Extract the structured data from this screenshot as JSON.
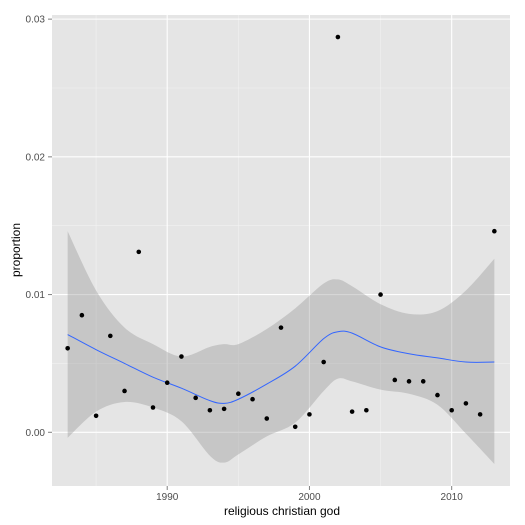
{
  "chart_data": {
    "type": "scatter",
    "xlabel": "religious christian god",
    "ylabel": "proportion",
    "xlim": [
      1981.9,
      2014.1
    ],
    "ylim": [
      -0.0039,
      0.0303
    ],
    "x_ticks": [
      1990,
      2000,
      2010
    ],
    "x_tick_labels": [
      "1990",
      "2000",
      "2010"
    ],
    "y_ticks": [
      0.0,
      0.01,
      0.02,
      0.03
    ],
    "y_tick_labels": [
      "0.00",
      "0.01",
      "0.02",
      "0.03"
    ],
    "grid": true,
    "legend": "none",
    "points": [
      {
        "x": 1983,
        "y": 0.0061
      },
      {
        "x": 1984,
        "y": 0.0085
      },
      {
        "x": 1985,
        "y": 0.0012
      },
      {
        "x": 1986,
        "y": 0.007
      },
      {
        "x": 1987,
        "y": 0.003
      },
      {
        "x": 1988,
        "y": 0.0131
      },
      {
        "x": 1989,
        "y": 0.0018
      },
      {
        "x": 1990,
        "y": 0.0036
      },
      {
        "x": 1991,
        "y": 0.0055
      },
      {
        "x": 1992,
        "y": 0.0025
      },
      {
        "x": 1993,
        "y": 0.0016
      },
      {
        "x": 1994,
        "y": 0.0017
      },
      {
        "x": 1995,
        "y": 0.0028
      },
      {
        "x": 1996,
        "y": 0.0024
      },
      {
        "x": 1997,
        "y": 0.001
      },
      {
        "x": 1998,
        "y": 0.0076
      },
      {
        "x": 1999,
        "y": 0.0004
      },
      {
        "x": 2000,
        "y": 0.0013
      },
      {
        "x": 2001,
        "y": 0.0051
      },
      {
        "x": 2002,
        "y": 0.0287
      },
      {
        "x": 2003,
        "y": 0.0015
      },
      {
        "x": 2004,
        "y": 0.0016
      },
      {
        "x": 2005,
        "y": 0.01
      },
      {
        "x": 2006,
        "y": 0.0038
      },
      {
        "x": 2007,
        "y": 0.0037
      },
      {
        "x": 2008,
        "y": 0.0037
      },
      {
        "x": 2009,
        "y": 0.0027
      },
      {
        "x": 2010,
        "y": 0.0016
      },
      {
        "x": 2011,
        "y": 0.0021
      },
      {
        "x": 2012,
        "y": 0.0013
      },
      {
        "x": 2013,
        "y": 0.0146
      }
    ],
    "smooth_line": [
      {
        "x": 1983,
        "y": 0.0071
      },
      {
        "x": 1985,
        "y": 0.006
      },
      {
        "x": 1987,
        "y": 0.005
      },
      {
        "x": 1989,
        "y": 0.004
      },
      {
        "x": 1991,
        "y": 0.0032
      },
      {
        "x": 1993,
        "y": 0.0023
      },
      {
        "x": 1994,
        "y": 0.0021
      },
      {
        "x": 1995,
        "y": 0.0024
      },
      {
        "x": 1997,
        "y": 0.0035
      },
      {
        "x": 1999,
        "y": 0.0048
      },
      {
        "x": 2001,
        "y": 0.0068
      },
      {
        "x": 2002,
        "y": 0.0073
      },
      {
        "x": 2003,
        "y": 0.0072
      },
      {
        "x": 2005,
        "y": 0.0062
      },
      {
        "x": 2007,
        "y": 0.0057
      },
      {
        "x": 2009,
        "y": 0.0054
      },
      {
        "x": 2011,
        "y": 0.0051
      },
      {
        "x": 2013,
        "y": 0.0051
      }
    ],
    "confidence_band": [
      {
        "x": 1983,
        "lower": -0.0004,
        "upper": 0.0146
      },
      {
        "x": 1985,
        "lower": 0.0015,
        "upper": 0.0103
      },
      {
        "x": 1987,
        "lower": 0.0022,
        "upper": 0.0076
      },
      {
        "x": 1989,
        "lower": 0.0018,
        "upper": 0.0064
      },
      {
        "x": 1991,
        "lower": 0.0008,
        "upper": 0.0055
      },
      {
        "x": 1993,
        "lower": -0.0017,
        "upper": 0.0062
      },
      {
        "x": 1994,
        "lower": -0.0022,
        "upper": 0.0064
      },
      {
        "x": 1995,
        "lower": -0.0016,
        "upper": 0.0064
      },
      {
        "x": 1997,
        "lower": -0.0003,
        "upper": 0.0075
      },
      {
        "x": 1999,
        "lower": 0.0007,
        "upper": 0.009
      },
      {
        "x": 2001,
        "lower": 0.003,
        "upper": 0.0108
      },
      {
        "x": 2002,
        "lower": 0.0039,
        "upper": 0.0111
      },
      {
        "x": 2003,
        "lower": 0.0037,
        "upper": 0.0106
      },
      {
        "x": 2005,
        "lower": 0.0031,
        "upper": 0.0093
      },
      {
        "x": 2007,
        "lower": 0.0028,
        "upper": 0.0086
      },
      {
        "x": 2009,
        "lower": 0.002,
        "upper": 0.0088
      },
      {
        "x": 2011,
        "lower": -0.0001,
        "upper": 0.0103
      },
      {
        "x": 2013,
        "lower": -0.0023,
        "upper": 0.0126
      }
    ],
    "colors": {
      "panel": "#e5e5e5",
      "grid_major": "#ffffff",
      "grid_minor": "#f2f2f2",
      "points": "#000000",
      "line": "#3366ff",
      "band": "#999999"
    }
  }
}
